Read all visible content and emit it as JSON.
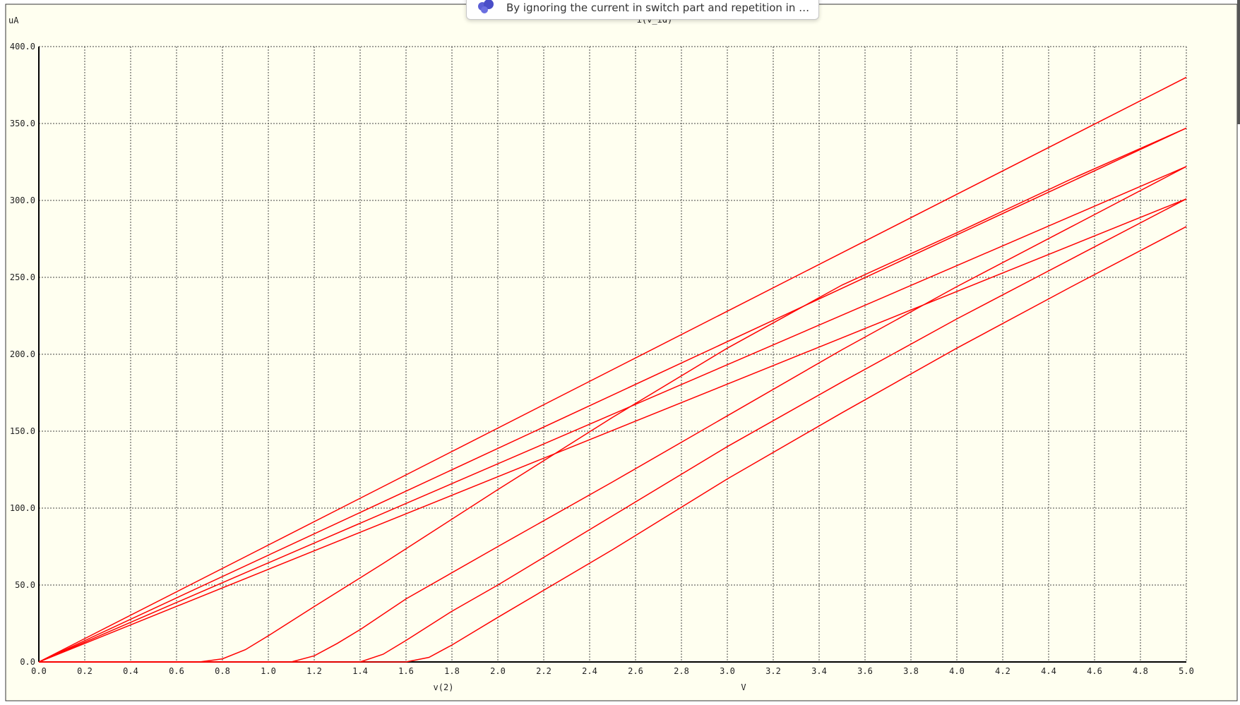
{
  "notification": {
    "message": "By ignoring the current in switch part and repetition in reverse…"
  },
  "chart_data": {
    "type": "line",
    "title": "i(v_id)",
    "xlabel": "v(2)",
    "xunit": "V",
    "yunit": "uA",
    "xlim": [
      0,
      5
    ],
    "ylim": [
      0,
      400
    ],
    "grid": true,
    "background": "#fffff0",
    "line_color": "#ff0000",
    "x_ticks": [
      "0.0",
      "0.2",
      "0.4",
      "0.6",
      "0.8",
      "1.0",
      "1.2",
      "1.4",
      "1.6",
      "1.8",
      "2.0",
      "2.2",
      "2.4",
      "2.6",
      "2.8",
      "3.0",
      "3.2",
      "3.4",
      "3.6",
      "3.8",
      "4.0",
      "4.2",
      "4.4",
      "4.6",
      "4.8",
      "5.0"
    ],
    "y_ticks": [
      "0.0",
      "50.0",
      "100.0",
      "150.0",
      "200.0",
      "250.0",
      "300.0",
      "350.0",
      "400.0"
    ],
    "series": [
      {
        "x": [
          0,
          5
        ],
        "values": [
          0,
          380
        ]
      },
      {
        "x": [
          0,
          5
        ],
        "values": [
          0,
          347
        ]
      },
      {
        "x": [
          0,
          5
        ],
        "values": [
          0,
          322
        ]
      },
      {
        "x": [
          0,
          5
        ],
        "values": [
          0,
          301
        ]
      },
      {
        "x": [
          0,
          0.7,
          0.8,
          0.9,
          1.0,
          1.2,
          1.5,
          2.0,
          2.5,
          3.0,
          3.5,
          4.0,
          4.5,
          5.0
        ],
        "values": [
          0,
          0,
          2,
          8,
          17,
          36,
          64,
          112,
          159,
          204,
          245,
          279,
          314,
          347
        ]
      },
      {
        "x": [
          0,
          1.1,
          1.2,
          1.3,
          1.4,
          1.6,
          2.0,
          2.5,
          3.0,
          3.5,
          4.0,
          4.5,
          5.0
        ],
        "values": [
          0,
          0,
          4,
          12,
          21,
          41,
          75,
          117,
          160,
          203,
          244,
          283,
          322
        ]
      },
      {
        "x": [
          0,
          1.4,
          1.5,
          1.6,
          1.8,
          2.0,
          2.5,
          3.0,
          3.5,
          4.0,
          4.5,
          5.0
        ],
        "values": [
          0,
          0,
          5,
          14,
          33,
          50,
          95,
          140,
          182,
          223,
          262,
          301
        ]
      },
      {
        "x": [
          0,
          1.6,
          1.7,
          1.8,
          2.0,
          2.5,
          3.0,
          3.5,
          4.0,
          4.5,
          5.0
        ],
        "values": [
          0,
          0,
          3,
          11,
          29,
          73,
          119,
          162,
          204,
          244,
          283
        ]
      }
    ]
  }
}
